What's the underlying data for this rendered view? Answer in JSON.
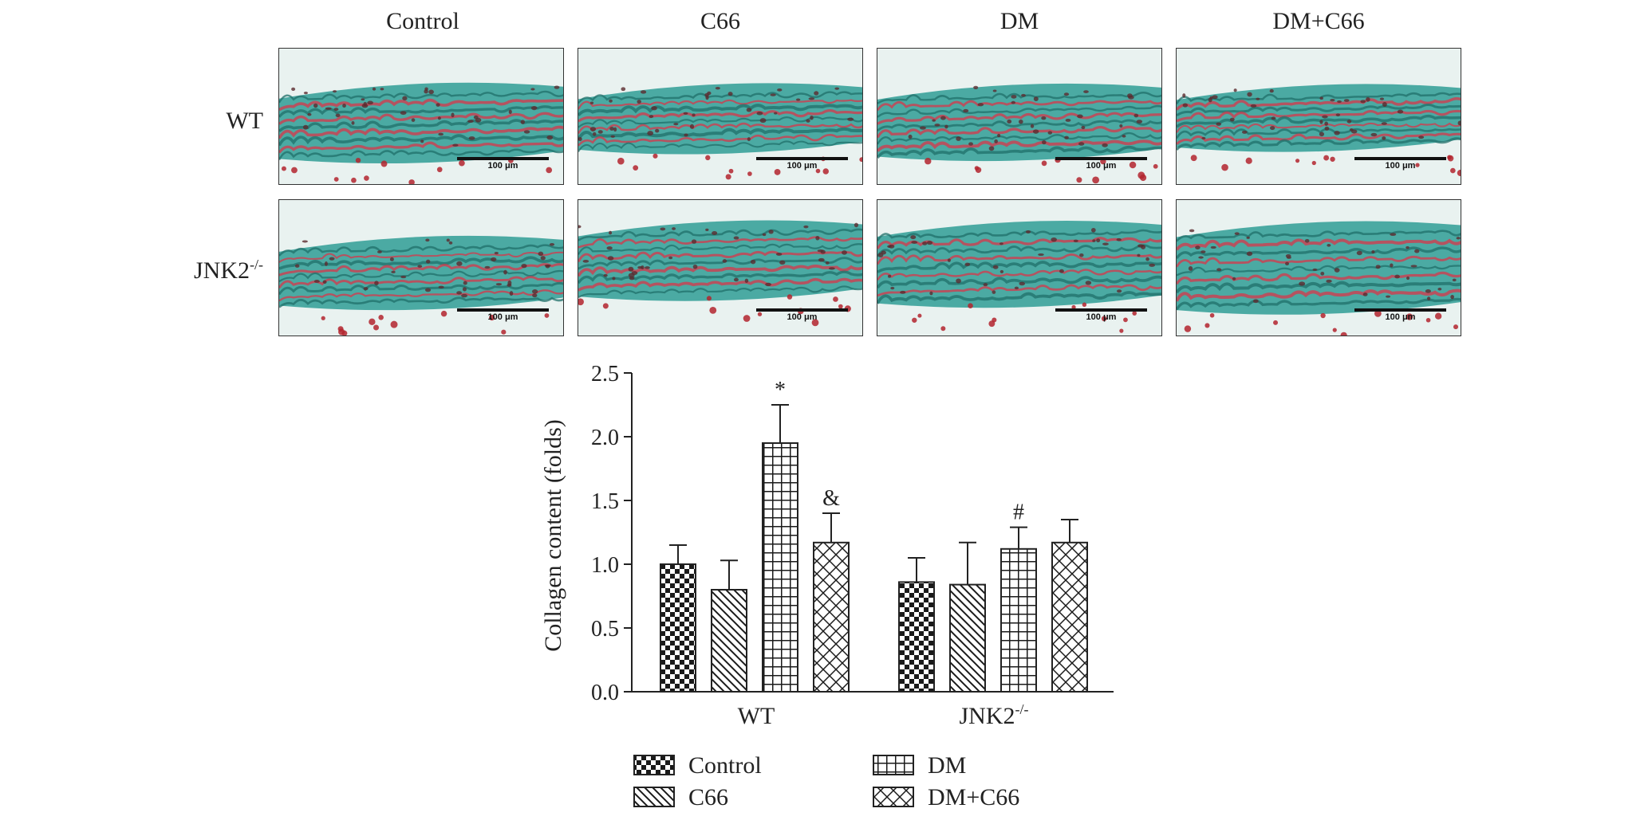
{
  "figure": {
    "column_labels": [
      "Control",
      "C66",
      "DM",
      "DM+C66"
    ],
    "row_labels": [
      {
        "base": "WT",
        "sup": ""
      },
      {
        "base": "JNK2",
        "sup": "-/-"
      }
    ],
    "scalebar_label": "100 μm"
  },
  "colors": {
    "collagen": "#2f9d95",
    "muscle": "#d8364a",
    "background": "#e9f2f0",
    "nuclei": "#5b2a2e"
  },
  "chart_data": {
    "type": "bar",
    "categories": [
      {
        "base": "WT",
        "sup": ""
      },
      {
        "base": "JNK2",
        "sup": "-/-"
      }
    ],
    "series": [
      {
        "name": "Control",
        "pattern": "checker",
        "values": [
          1.0,
          0.86
        ],
        "errors": [
          0.15,
          0.19
        ],
        "annotations": [
          "",
          ""
        ]
      },
      {
        "name": "C66",
        "pattern": "diagonal",
        "values": [
          0.8,
          0.84
        ],
        "errors": [
          0.23,
          0.33
        ],
        "annotations": [
          "",
          ""
        ]
      },
      {
        "name": "DM",
        "pattern": "grid",
        "values": [
          1.95,
          1.12
        ],
        "errors": [
          0.3,
          0.17
        ],
        "annotations": [
          "*",
          "#"
        ]
      },
      {
        "name": "DM+C66",
        "pattern": "crosshatch",
        "values": [
          1.17,
          1.17
        ],
        "errors": [
          0.23,
          0.18
        ],
        "annotations": [
          "&",
          ""
        ]
      }
    ],
    "ylabel": "Collagen content (folds)",
    "ylim": [
      0,
      2.5
    ],
    "yticks": [
      "0.0",
      "0.5",
      "1.0",
      "1.5",
      "2.0",
      "2.5"
    ],
    "legend": "bottom, two columns",
    "grid": false
  }
}
